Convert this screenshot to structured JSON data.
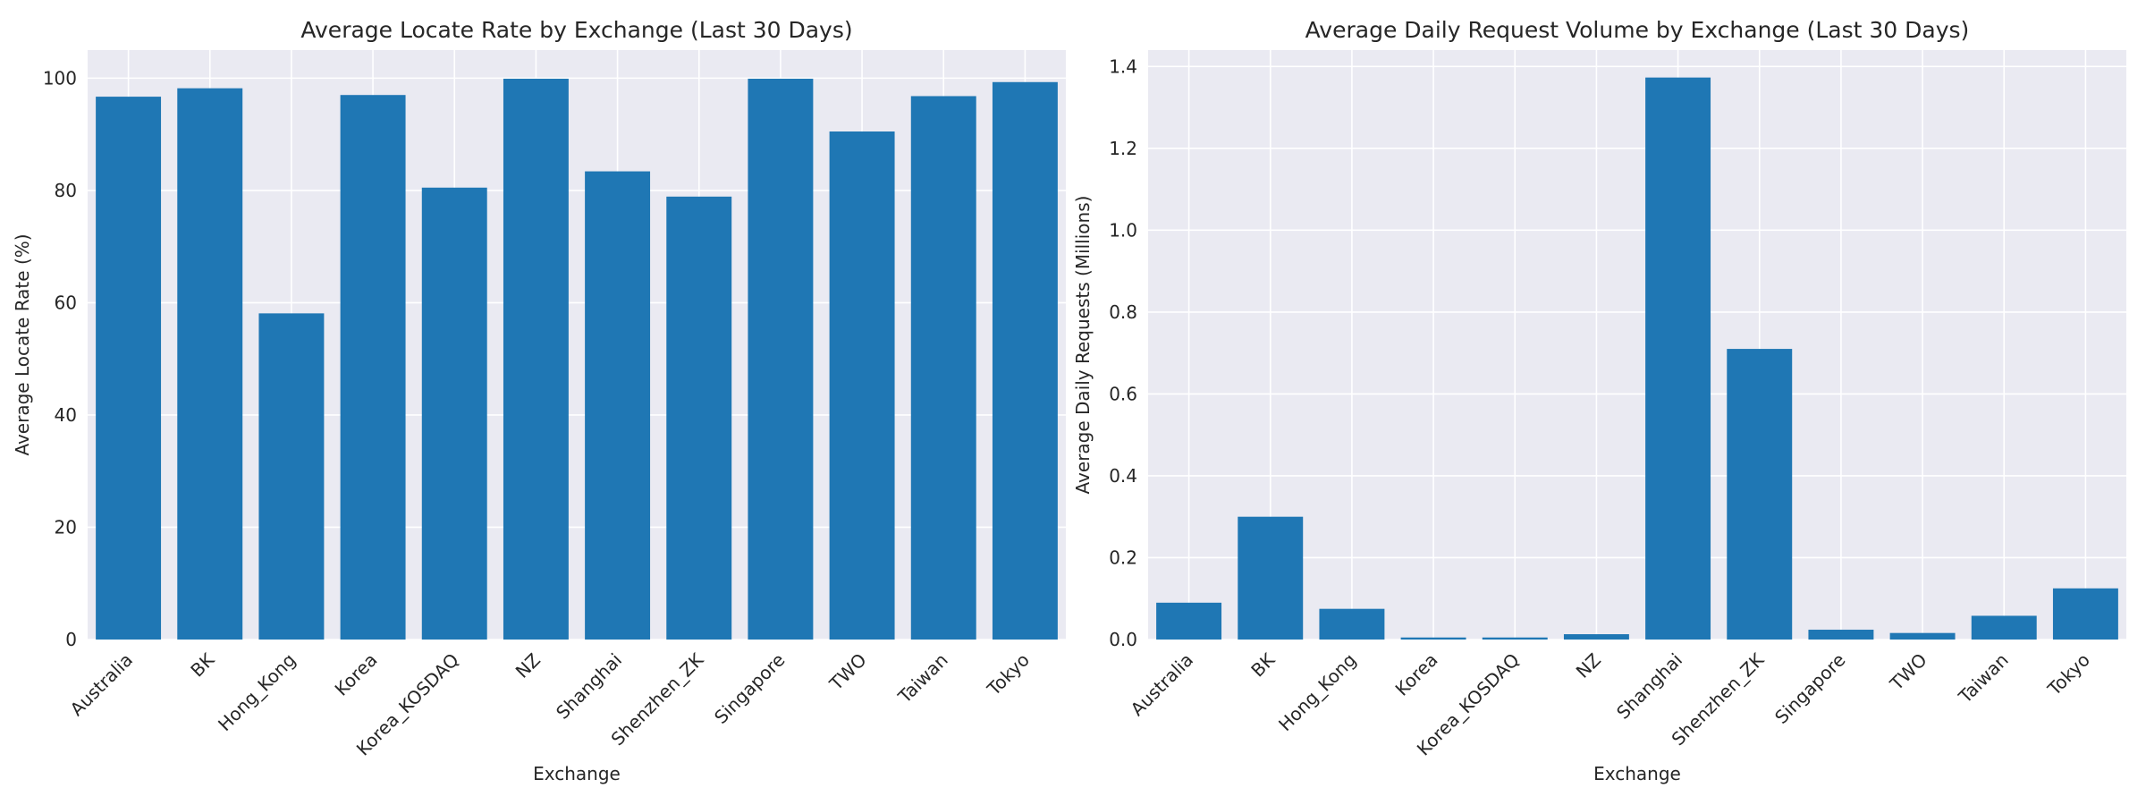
{
  "chart_data": [
    {
      "type": "bar",
      "title": "Average Locate Rate by Exchange (Last 30 Days)",
      "xlabel": "Exchange",
      "ylabel": "Average Locate Rate (%)",
      "categories": [
        "Australia",
        "BK",
        "Hong_Kong",
        "Korea",
        "Korea_KOSDAQ",
        "NZ",
        "Shanghai",
        "Shenzhen_ZK",
        "Singapore",
        "TWO",
        "Taiwan",
        "Tokyo"
      ],
      "values": [
        96.7,
        98.2,
        58.1,
        97.0,
        80.5,
        99.9,
        83.4,
        78.9,
        99.9,
        90.5,
        96.8,
        99.3
      ],
      "ylim": [
        0,
        105
      ],
      "yticks": [
        0,
        20,
        40,
        60,
        80,
        100
      ],
      "ytick_labels": [
        "0",
        "20",
        "40",
        "60",
        "80",
        "100"
      ],
      "grid": true,
      "bar_color": "#1f77b4"
    },
    {
      "type": "bar",
      "title": "Average Daily Request Volume by Exchange (Last 30 Days)",
      "xlabel": "Exchange",
      "ylabel": "Average Daily Requests (Millions)",
      "categories": [
        "Australia",
        "BK",
        "Hong_Kong",
        "Korea",
        "Korea_KOSDAQ",
        "NZ",
        "Shanghai",
        "Shenzhen_ZK",
        "Singapore",
        "TWO",
        "Taiwan",
        "Tokyo"
      ],
      "values": [
        0.09,
        0.3,
        0.075,
        0.005,
        0.005,
        0.013,
        1.373,
        0.71,
        0.024,
        0.016,
        0.058,
        0.125
      ],
      "ylim": [
        0,
        1.44
      ],
      "yticks": [
        0,
        0.2,
        0.4,
        0.6,
        0.8,
        1.0,
        1.2,
        1.4
      ],
      "ytick_labels": [
        "0.0",
        "0.2",
        "0.4",
        "0.6",
        "0.8",
        "1.0",
        "1.2",
        "1.4"
      ],
      "grid": true,
      "bar_color": "#1f77b4"
    }
  ]
}
